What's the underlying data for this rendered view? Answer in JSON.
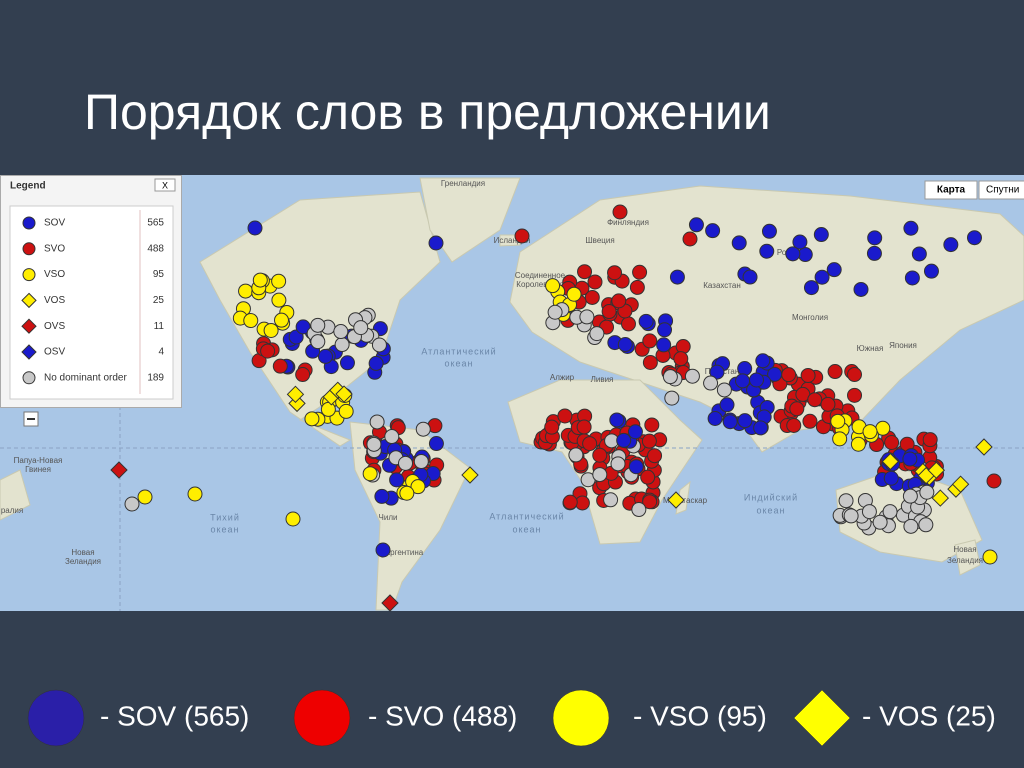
{
  "title": "Порядок слов в предложении",
  "map": {
    "labels": [
      "Гренландия",
      "Исландия",
      "Швеция",
      "Финляндия",
      "Россия",
      "Казахстан",
      "Монголия",
      "Япония",
      "Пакистан",
      "Алжир",
      "Ливия",
      "Соединенное",
      "Королевство",
      "Атлантический",
      "океан",
      "Атлантический",
      "океан",
      "Индийский",
      "океан",
      "Тихий",
      "океан",
      "Папуа-Новая",
      "Гвинея",
      "Новая",
      "Зеландия",
      "Новая",
      "Зеландия",
      "Чили",
      "Аргентина",
      "Ангола",
      "Мадагаскар",
      "Южная",
      "ралия"
    ],
    "buttons": [
      "Карта",
      "Спутни"
    ]
  },
  "legend": {
    "title": "Legend",
    "close": "X",
    "items": [
      {
        "name": "SOV",
        "count": 565,
        "color": "#1a1acc",
        "shape": "circle"
      },
      {
        "name": "SVO",
        "count": 488,
        "color": "#cc1111",
        "shape": "circle"
      },
      {
        "name": "VSO",
        "count": 95,
        "color": "#ffee00",
        "shape": "circle"
      },
      {
        "name": "VOS",
        "count": 25,
        "color": "#ffee00",
        "shape": "diamond"
      },
      {
        "name": "OVS",
        "count": 11,
        "color": "#cc1111",
        "shape": "diamond"
      },
      {
        "name": "OSV",
        "count": 4,
        "color": "#1a1acc",
        "shape": "diamond"
      },
      {
        "name": "No dominant order",
        "count": 189,
        "color": "#c8c8c8",
        "shape": "circle"
      }
    ]
  },
  "key": [
    {
      "text": "- SOV (565)",
      "color": "#2a1fa8",
      "shape": "circle"
    },
    {
      "text": "- SVO (488)",
      "color": "#ee0000",
      "shape": "circle"
    },
    {
      "text": "- VSO (95)",
      "color": "#ffff00",
      "shape": "circle"
    },
    {
      "text": "- VOS (25)",
      "color": "#ffff00",
      "shape": "diamond"
    }
  ]
}
